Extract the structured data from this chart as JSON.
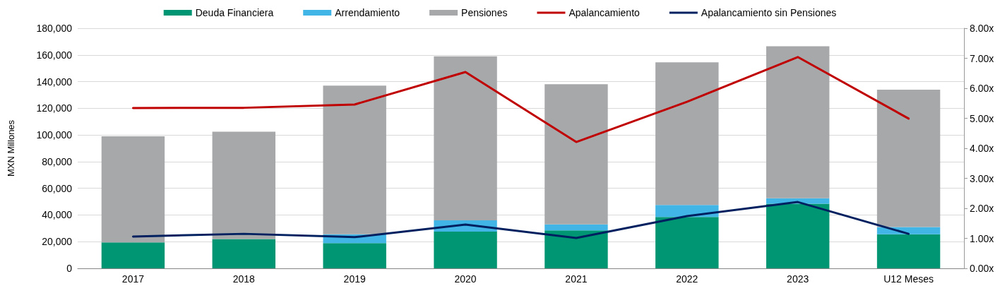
{
  "chart_data": {
    "type": "bar",
    "stacked": true,
    "ylabel": "MXN Millones",
    "categories": [
      "2017",
      "2018",
      "2019",
      "2020",
      "2021",
      "2022",
      "2023",
      "U12 Meses"
    ],
    "series": [
      {
        "name": "Deuda Financiera",
        "color": "#009673",
        "values": [
          19500,
          22000,
          18900,
          27500,
          28500,
          38500,
          48500,
          25500
        ]
      },
      {
        "name": "Arrendamiento",
        "color": "#41b6e6",
        "values": [
          0,
          0,
          6600,
          8500,
          4500,
          9000,
          4000,
          5500
        ]
      },
      {
        "name": "Pensiones",
        "color": "#a7a8aa",
        "values": [
          79500,
          80500,
          111500,
          123000,
          105000,
          107000,
          114000,
          103000
        ]
      },
      {
        "name": "Apalancamiento",
        "type": "line",
        "axis": "y2",
        "color": "#c00000",
        "values": [
          5.34,
          5.35,
          5.46,
          6.54,
          4.21,
          5.55,
          7.04,
          4.99
        ]
      },
      {
        "name": "Apalancamiento sin Pensiones",
        "type": "line",
        "axis": "y2",
        "color": "#002060",
        "values": [
          1.06,
          1.15,
          1.04,
          1.46,
          1.01,
          1.74,
          2.21,
          1.15
        ]
      }
    ],
    "ylim": [
      0,
      180000
    ],
    "yticks": [
      {
        "value": 0,
        "label": "0"
      },
      {
        "value": 20000,
        "label": "20,000"
      },
      {
        "value": 40000,
        "label": "40,000"
      },
      {
        "value": 60000,
        "label": "60,000"
      },
      {
        "value": 80000,
        "label": "80,000"
      },
      {
        "value": 100000,
        "label": "100,000"
      },
      {
        "value": 120000,
        "label": "120,000"
      },
      {
        "value": 140000,
        "label": "140,000"
      },
      {
        "value": 160000,
        "label": "160,000"
      },
      {
        "value": 180000,
        "label": "180,000"
      }
    ],
    "y2lim": [
      0,
      8
    ],
    "y2ticks": [
      {
        "value": 0,
        "label": "0.00x"
      },
      {
        "value": 1,
        "label": "1.00x"
      },
      {
        "value": 2,
        "label": "2.00x"
      },
      {
        "value": 3,
        "label": "3.00x"
      },
      {
        "value": 4,
        "label": "4.00x"
      },
      {
        "value": 5,
        "label": "5.00x"
      },
      {
        "value": 6,
        "label": "6.00x"
      },
      {
        "value": 7,
        "label": "7.00x"
      },
      {
        "value": 8,
        "label": "8.00x"
      }
    ],
    "grid": "y",
    "legend": "top",
    "marker": "none",
    "line_style": "solid"
  }
}
